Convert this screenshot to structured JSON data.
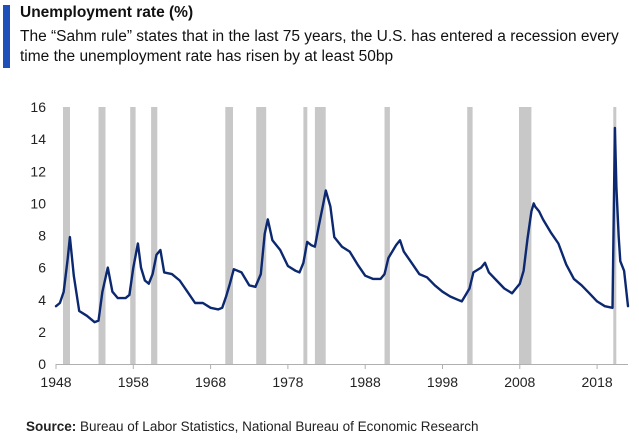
{
  "header": {
    "title": "Unemployment rate (%)",
    "subtitle": "The “Sahm rule” states that in the last 75 years, the U.S. has entered a recession every time the unemployment rate has risen by at least 50bp"
  },
  "source": {
    "label": "Source:",
    "text": " Bureau of Labor Statistics, National Bureau of Economic Research"
  },
  "colors": {
    "accent": "#1f4fb8",
    "line": "#0b2870",
    "recession_band": "#c8c8c8",
    "axis": "#b0b0b0"
  },
  "chart_data": {
    "type": "line",
    "title": "Unemployment rate (%)",
    "xlabel": "",
    "ylabel": "",
    "xlim": [
      1948,
      2022
    ],
    "ylim": [
      0,
      16
    ],
    "grid": false,
    "x_ticks": [
      1948,
      1958,
      1968,
      1978,
      1988,
      1998,
      2008,
      2018
    ],
    "y_ticks": [
      0,
      2,
      4,
      6,
      8,
      10,
      12,
      14,
      16
    ],
    "recessions": [
      [
        1948.9,
        1949.8
      ],
      [
        1953.5,
        1954.4
      ],
      [
        1957.6,
        1958.3
      ],
      [
        1960.3,
        1961.1
      ],
      [
        1969.9,
        1970.9
      ],
      [
        1973.9,
        1975.2
      ],
      [
        1980.0,
        1980.5
      ],
      [
        1981.5,
        1982.9
      ],
      [
        1990.5,
        1991.2
      ],
      [
        2001.2,
        2001.9
      ],
      [
        2007.9,
        2009.5
      ],
      [
        2020.1,
        2020.4
      ]
    ],
    "series": [
      {
        "x": [
          1948.0,
          1948.5,
          1949.0,
          1949.5,
          1949.8,
          1950.3,
          1951.0,
          1952.0,
          1953.0,
          1953.5,
          1954.0,
          1954.7,
          1955.3,
          1956.0,
          1957.0,
          1957.5,
          1958.0,
          1958.6,
          1959.0,
          1959.5,
          1960.0,
          1960.5,
          1961.0,
          1961.5,
          1962.0,
          1963.0,
          1964.0,
          1965.0,
          1966.0,
          1967.0,
          1968.0,
          1969.0,
          1969.5,
          1970.0,
          1970.5,
          1971.0,
          1972.0,
          1973.0,
          1973.8,
          1974.5,
          1975.0,
          1975.4,
          1976.0,
          1977.0,
          1978.0,
          1979.0,
          1979.5,
          1980.0,
          1980.5,
          1981.0,
          1981.5,
          1982.0,
          1982.5,
          1982.9,
          1983.5,
          1984.0,
          1985.0,
          1986.0,
          1987.0,
          1988.0,
          1989.0,
          1990.0,
          1990.5,
          1991.0,
          1992.0,
          1992.5,
          1993.0,
          1994.0,
          1995.0,
          1996.0,
          1997.0,
          1998.0,
          1999.0,
          2000.0,
          2000.5,
          2001.0,
          2001.5,
          2002.0,
          2003.0,
          2003.5,
          2004.0,
          2005.0,
          2006.0,
          2007.0,
          2007.5,
          2008.0,
          2008.5,
          2009.0,
          2009.5,
          2009.8,
          2010.0,
          2010.5,
          2011.0,
          2012.0,
          2013.0,
          2014.0,
          2015.0,
          2016.0,
          2017.0,
          2018.0,
          2019.0,
          2020.0,
          2020.3,
          2020.5,
          2020.8,
          2021.0,
          2021.5,
          2022.0
        ],
        "y": [
          3.6,
          3.8,
          4.5,
          6.5,
          7.9,
          5.5,
          3.3,
          3.0,
          2.6,
          2.7,
          4.5,
          6.0,
          4.5,
          4.1,
          4.1,
          4.3,
          6.0,
          7.5,
          6.0,
          5.2,
          5.0,
          5.6,
          6.8,
          7.1,
          5.7,
          5.6,
          5.2,
          4.5,
          3.8,
          3.8,
          3.5,
          3.4,
          3.5,
          4.2,
          5.0,
          5.9,
          5.7,
          4.9,
          4.8,
          5.6,
          8.1,
          9.0,
          7.7,
          7.1,
          6.1,
          5.8,
          5.7,
          6.3,
          7.6,
          7.4,
          7.3,
          8.6,
          9.8,
          10.8,
          9.8,
          7.9,
          7.3,
          7.0,
          6.2,
          5.5,
          5.3,
          5.3,
          5.6,
          6.6,
          7.4,
          7.7,
          7.0,
          6.3,
          5.6,
          5.4,
          4.9,
          4.5,
          4.2,
          4.0,
          3.9,
          4.3,
          4.7,
          5.7,
          6.0,
          6.3,
          5.7,
          5.2,
          4.7,
          4.4,
          4.7,
          5.0,
          5.8,
          7.8,
          9.5,
          10.0,
          9.8,
          9.5,
          9.0,
          8.2,
          7.5,
          6.2,
          5.3,
          4.9,
          4.4,
          3.9,
          3.6,
          3.5,
          14.7,
          11.0,
          7.9,
          6.4,
          5.8,
          3.6
        ]
      }
    ]
  }
}
